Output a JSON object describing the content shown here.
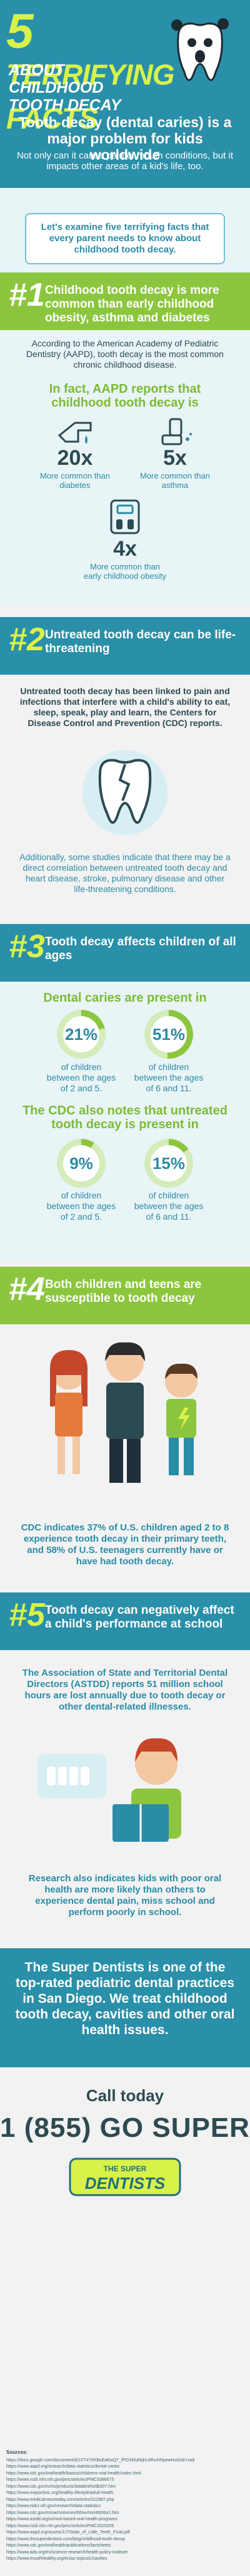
{
  "header": {
    "title_number": "5",
    "title_word": "Terrifying Facts",
    "subtitle": "About Childhood Tooth Decay",
    "main_text": "Tooth decay (dental caries) is a major problem for kids worldwide",
    "sub_text": "Not only can it cause painful mouth conditions, but it impacts other areas of a kid's life, too."
  },
  "intro": {
    "text": "Let's examine five terrifying facts that every parent needs to know about childhood tooth decay."
  },
  "fact1": {
    "num": "#1",
    "title": "Childhood tooth decay is more common than early childhood obesity, asthma and diabetes",
    "body": "According to the American Academy of Pediatric Dentistry (AAPD), tooth decay is the most common chronic childhood disease.",
    "heading": "In fact, AAPD reports that childhood tooth decay is",
    "stats": [
      {
        "value": "20x",
        "caption": "More common than diabetes",
        "icon": "diabetes-icon"
      },
      {
        "value": "5x",
        "caption": "More common than asthma",
        "icon": "inhaler-icon"
      },
      {
        "value": "4x",
        "caption": "More common than early childhood obesity",
        "icon": "scale-icon"
      }
    ]
  },
  "fact2": {
    "num": "#2",
    "title": "Untreated tooth decay can be life-threatening",
    "body": "Untreated tooth decay has been linked to pain and infections that interfere with a child's ability to eat, sleep, speak, play and learn, the Centers for Disease Control and Prevention (CDC) reports.",
    "body2": "Additionally, some studies indicate that there may be a direct correlation between untreated tooth decay and heart disease, stroke, pulmonary disease and other life-threatening conditions."
  },
  "fact3": {
    "num": "#3",
    "title": "Tooth decay affects children of all ages",
    "heading1": "Dental caries are present in",
    "stats1": [
      {
        "value": "21%",
        "caption": "of children between the ages of 2 and 5."
      },
      {
        "value": "51%",
        "caption": "of children between the ages of 6 and 11."
      }
    ],
    "heading2": "The CDC also notes that untreated tooth decay is present in",
    "stats2": [
      {
        "value": "9%",
        "caption": "of children between the ages of 2 and 5."
      },
      {
        "value": "15%",
        "caption": "of children between the ages of 6 and 11."
      }
    ]
  },
  "fact4": {
    "num": "#4",
    "title": "Both children and teens are susceptible to tooth decay",
    "body": "CDC indicates 37% of U.S. children aged 2 to 8 experience tooth decay in their primary teeth, and 58% of U.S. teenagers currently have or have had tooth decay."
  },
  "fact5": {
    "num": "#5",
    "title": "Tooth decay can negatively affect a child's performance at school",
    "body": "The Association of State and Territorial Dental Directors (ASTDD) reports 51 million school hours are lost annually due to tooth decay or other dental-related illnesses.",
    "body2": "Research also indicates kids with poor oral health are more likely than others to experience dental pain, miss school and perform poorly in school."
  },
  "cta": {
    "text": "The Super Dentists is one of the top-rated pediatric dental practices in San Diego. We treat childhood tooth decay, cavities and other oral health issues.",
    "call_label": "Call today",
    "phone": "1 (855) GO SUPER",
    "logo_top": "THE SUPER",
    "logo_main": "DENTISTS"
  },
  "sources": {
    "title": "Sources:",
    "links": [
      "https://docs.google.com/document/d/1XT4Y0KBsEaEwQ7_fPDXMuklqhLWhuHNpewHuGsbYxa8",
      "https://www.aapd.org/research/data-statistics/dental-caries",
      "https://www.cdc.gov/oralhealth/basics/childrens-oral-health/index.html",
      "https://www.ncbi.nlm.nih.gov/pmc/articles/PMC5386675",
      "https://www.cdc.gov/nchs/products/databriefs/db307.htm",
      "https://www.mayoclinic.org/healthy-lifestyle/adult-health",
      "https://www.medicalnewstoday.com/articles/311987.php",
      "https://www.nidcr.nih.gov/research/data-statistics",
      "https://www.cdc.gov/mmwr/volumes/66/wr/mm6606a1.htm",
      "https://www.astdd.org/school-based-oral-health-programs",
      "https://www.ncbi.nlm.nih.gov/pmc/articles/PMC3325205",
      "https://www.aapd.org/assets/1/7/State_of_Little_Teeth_Final.pdf",
      "https://www.thesuperdentists.com/blog/childhood-tooth-decay",
      "https://www.cdc.gov/oralhealth/publications/factsheets",
      "https://www.ada.org/en/science-research/health-policy-institute",
      "https://www.mouthhealthy.org/en/az-topics/c/cavities"
    ]
  },
  "colors": {
    "teal": "#2a8fa8",
    "lime": "#d9f24a",
    "green": "#8cc63f",
    "dark": "#2c4a52"
  }
}
